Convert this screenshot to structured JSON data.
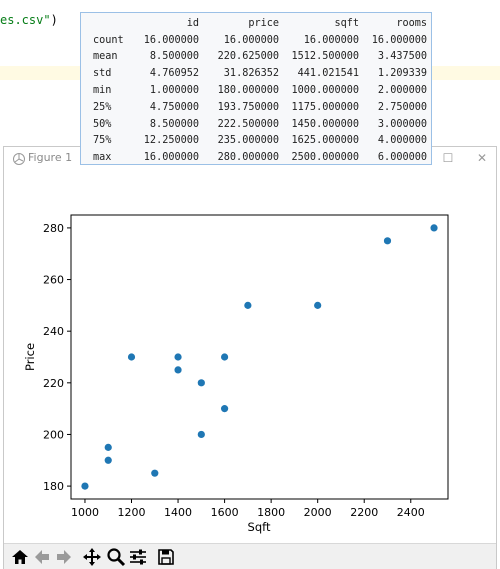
{
  "editor": {
    "code_fragment_text": "es.csv\"",
    "code_fragment_paren": ")"
  },
  "describe": {
    "columns": [
      "",
      "id",
      "price",
      "sqft",
      "rooms"
    ],
    "rows": [
      [
        "count",
        "16.000000",
        "16.000000",
        "16.000000",
        "16.000000"
      ],
      [
        "mean",
        "8.500000",
        "220.625000",
        "1512.500000",
        "3.437500"
      ],
      [
        "std",
        "4.760952",
        "31.826352",
        "441.021541",
        "1.209339"
      ],
      [
        "min",
        "1.000000",
        "180.000000",
        "1000.000000",
        "2.000000"
      ],
      [
        "25%",
        "4.750000",
        "193.750000",
        "1175.000000",
        "2.750000"
      ],
      [
        "50%",
        "8.500000",
        "222.500000",
        "1450.000000",
        "3.000000"
      ],
      [
        "75%",
        "12.250000",
        "235.000000",
        "1625.000000",
        "4.000000"
      ],
      [
        "max",
        "16.000000",
        "280.000000",
        "2500.000000",
        "6.000000"
      ]
    ]
  },
  "figure_window": {
    "title": "Figure 1"
  },
  "toolbar": {
    "buttons": [
      "home-icon",
      "back-arrow-icon",
      "forward-arrow-icon",
      "pan-icon",
      "zoom-icon",
      "configure-subplots-icon",
      "save-icon"
    ]
  },
  "chart_data": {
    "type": "scatter",
    "title": "",
    "xlabel": "Sqft",
    "ylabel": "Price",
    "xlim": [
      940,
      2560
    ],
    "ylim": [
      175,
      285
    ],
    "xticks": [
      1000,
      1200,
      1400,
      1600,
      1800,
      2000,
      2200,
      2400
    ],
    "yticks": [
      180,
      200,
      220,
      240,
      260,
      280
    ],
    "marker_color": "#1f77b4",
    "points": [
      {
        "x": 1000,
        "y": 180
      },
      {
        "x": 1100,
        "y": 195
      },
      {
        "x": 1100,
        "y": 190
      },
      {
        "x": 1200,
        "y": 230
      },
      {
        "x": 1300,
        "y": 185
      },
      {
        "x": 1400,
        "y": 230
      },
      {
        "x": 1400,
        "y": 225
      },
      {
        "x": 1500,
        "y": 220
      },
      {
        "x": 1500,
        "y": 200
      },
      {
        "x": 1600,
        "y": 230
      },
      {
        "x": 1600,
        "y": 210
      },
      {
        "x": 1700,
        "y": 250
      },
      {
        "x": 2000,
        "y": 250
      },
      {
        "x": 2300,
        "y": 275
      },
      {
        "x": 2500,
        "y": 280
      }
    ]
  }
}
